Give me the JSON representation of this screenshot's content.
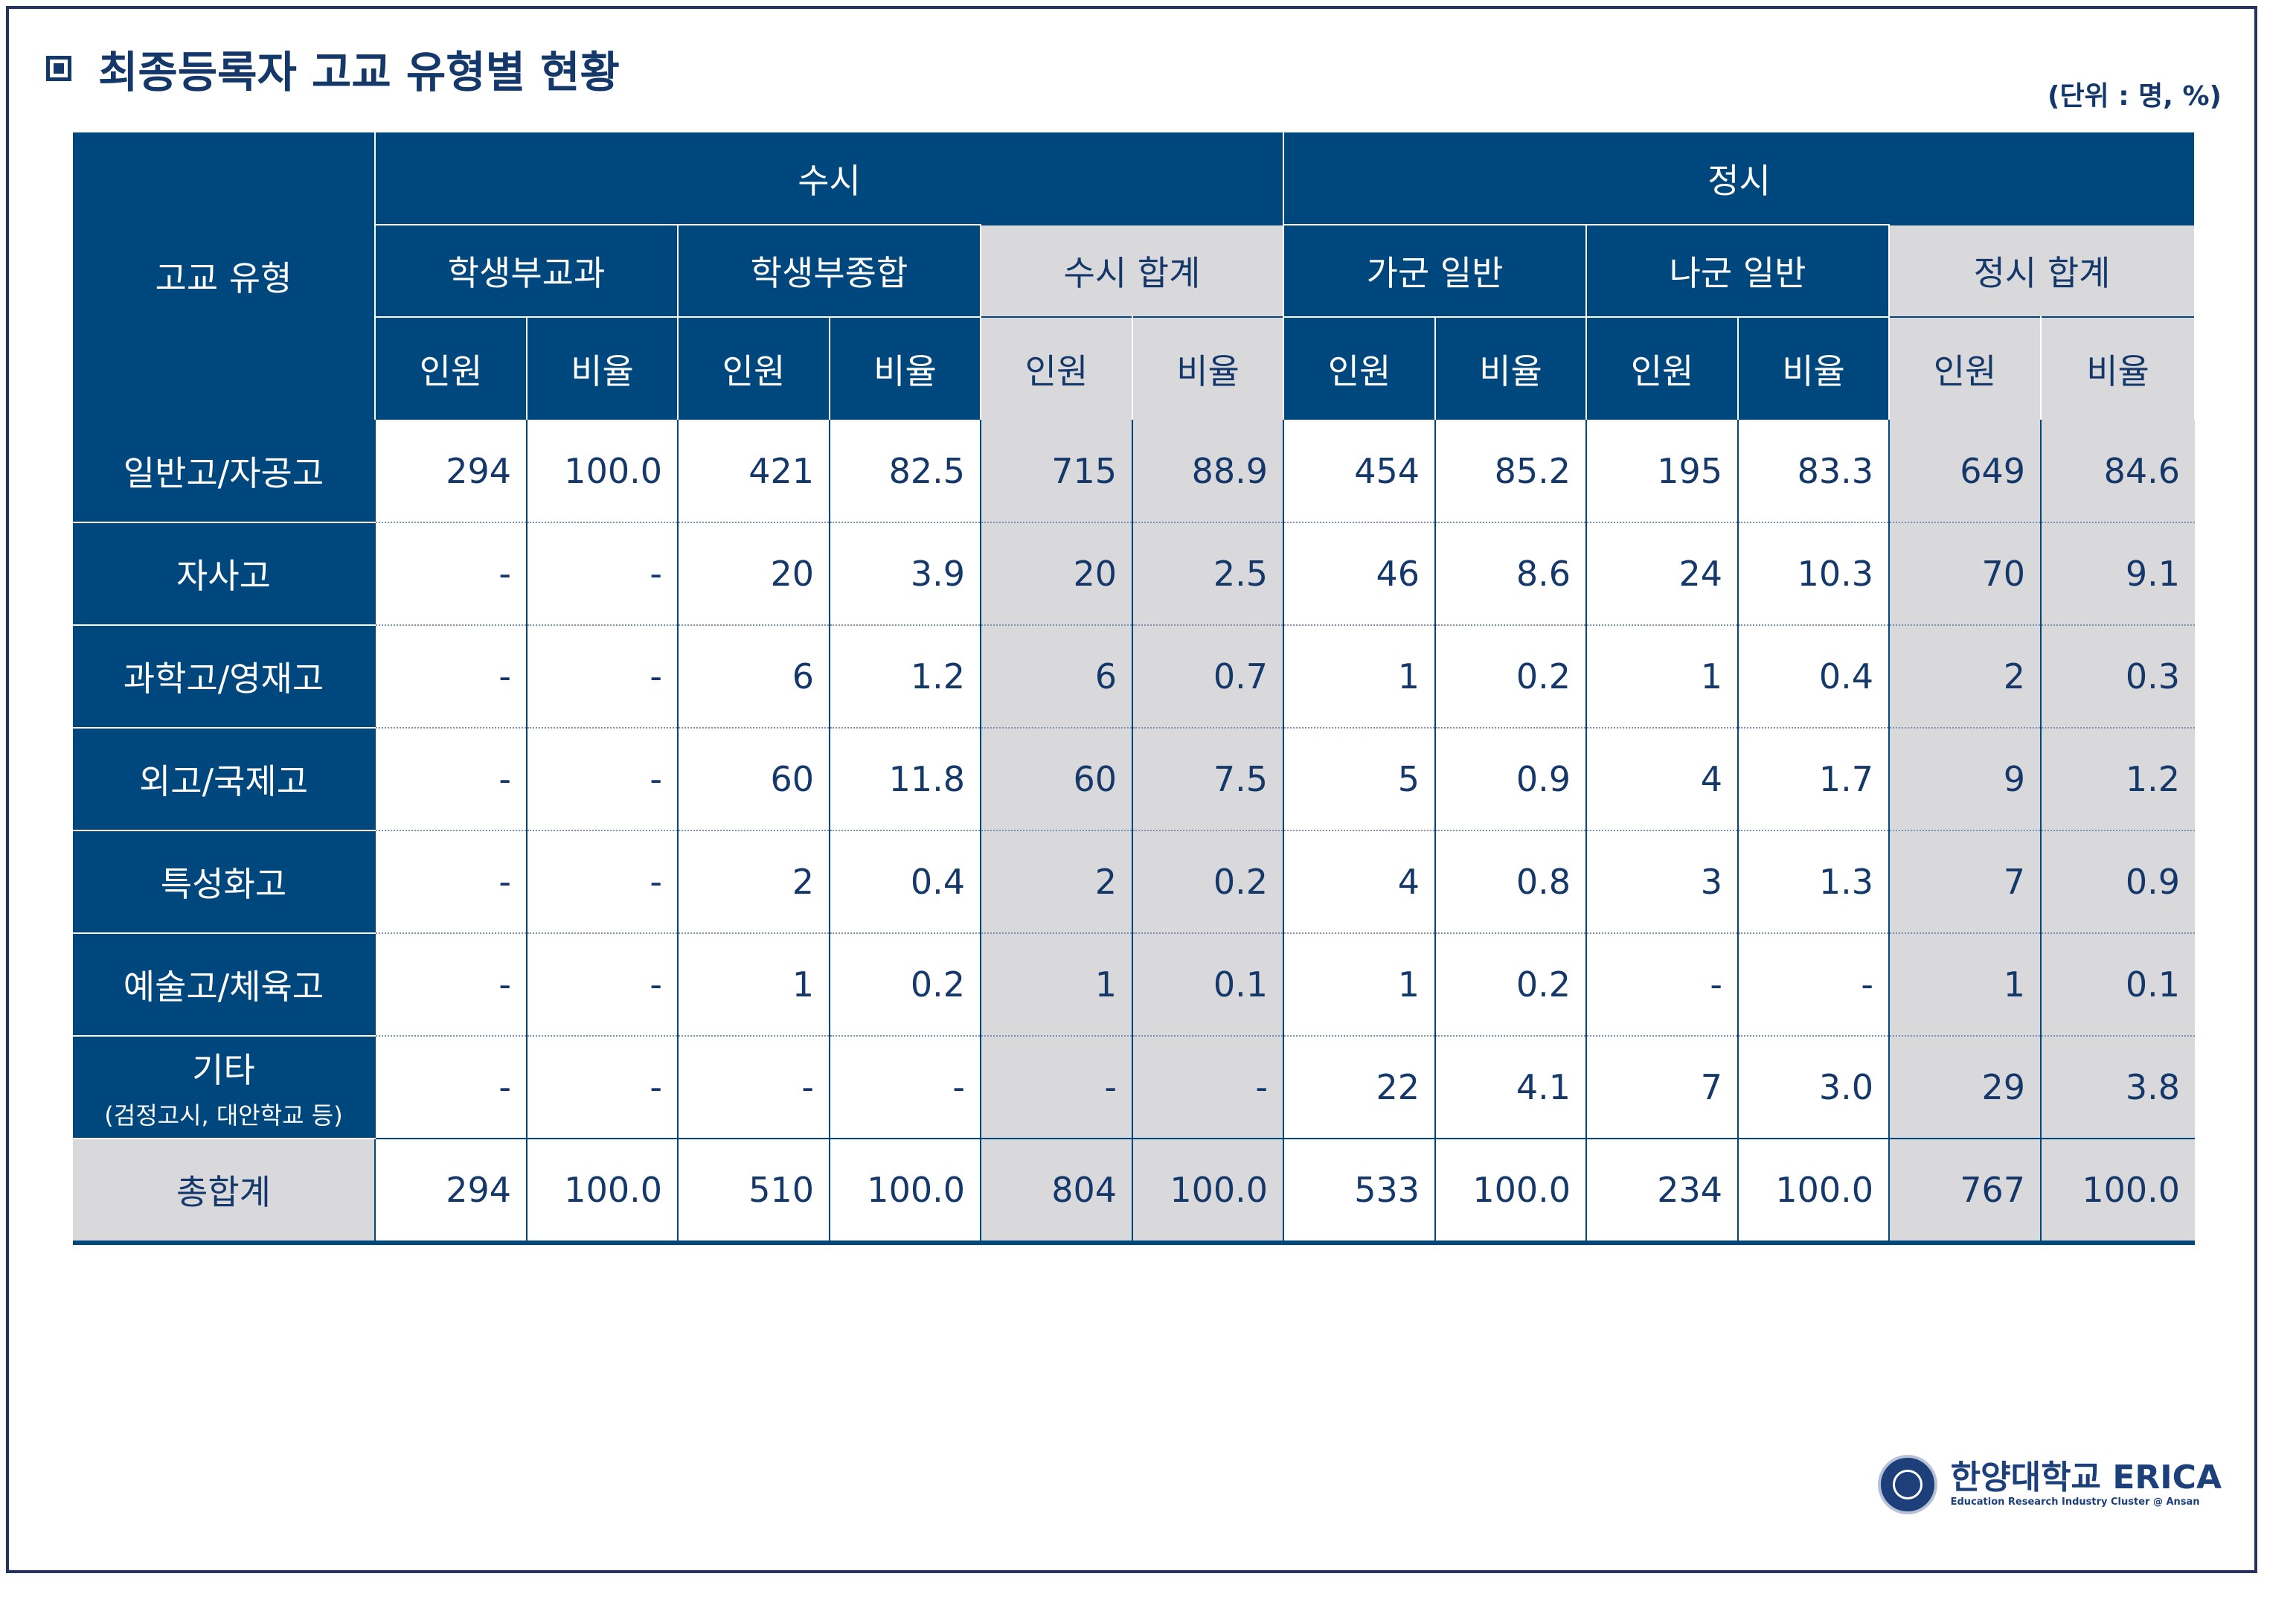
{
  "title": "최종등록자 고교 유형별 현황",
  "unit": "(단위 : 명, %)",
  "header": {
    "row_label": "고교 유형",
    "group_susi": "수시",
    "group_jeongsi": "정시",
    "sub_susi_gyogwa": "학생부교과",
    "sub_susi_jonghap": "학생부종합",
    "sub_susi_total": "수시 합계",
    "sub_jeongsi_ga": "가군 일반",
    "sub_jeongsi_na": "나군 일반",
    "sub_jeongsi_total": "정시 합계",
    "count": "인원",
    "ratio": "비율"
  },
  "rows": [
    {
      "label": "일반고/자공고",
      "values": [
        "294",
        "100.0",
        "421",
        "82.5",
        "715",
        "88.9",
        "454",
        "85.2",
        "195",
        "83.3",
        "649",
        "84.6"
      ]
    },
    {
      "label": "자사고",
      "values": [
        "-",
        "-",
        "20",
        "3.9",
        "20",
        "2.5",
        "46",
        "8.6",
        "24",
        "10.3",
        "70",
        "9.1"
      ]
    },
    {
      "label": "과학고/영재고",
      "values": [
        "-",
        "-",
        "6",
        "1.2",
        "6",
        "0.7",
        "1",
        "0.2",
        "1",
        "0.4",
        "2",
        "0.3"
      ]
    },
    {
      "label": "외고/국제고",
      "values": [
        "-",
        "-",
        "60",
        "11.8",
        "60",
        "7.5",
        "5",
        "0.9",
        "4",
        "1.7",
        "9",
        "1.2"
      ]
    },
    {
      "label": "특성화고",
      "values": [
        "-",
        "-",
        "2",
        "0.4",
        "2",
        "0.2",
        "4",
        "0.8",
        "3",
        "1.3",
        "7",
        "0.9"
      ]
    },
    {
      "label": "예술고/체육고",
      "values": [
        "-",
        "-",
        "1",
        "0.2",
        "1",
        "0.1",
        "1",
        "0.2",
        "-",
        "-",
        "1",
        "0.1"
      ]
    },
    {
      "label": "기타",
      "sublabel": "(검정고시, 대안학교 등)",
      "values": [
        "-",
        "-",
        "-",
        "-",
        "-",
        "-",
        "22",
        "4.1",
        "7",
        "3.0",
        "29",
        "3.8"
      ]
    }
  ],
  "total": {
    "label": "총합계",
    "values": [
      "294",
      "100.0",
      "510",
      "100.0",
      "804",
      "100.0",
      "533",
      "100.0",
      "234",
      "100.0",
      "767",
      "100.0"
    ]
  },
  "logo": {
    "name": "한양대학교 ERICA",
    "tagline": "Education Research Industry Cluster @ Ansan"
  },
  "colors": {
    "navy": "#00477d",
    "grey": "#d9d9db",
    "text": "#15386b"
  }
}
